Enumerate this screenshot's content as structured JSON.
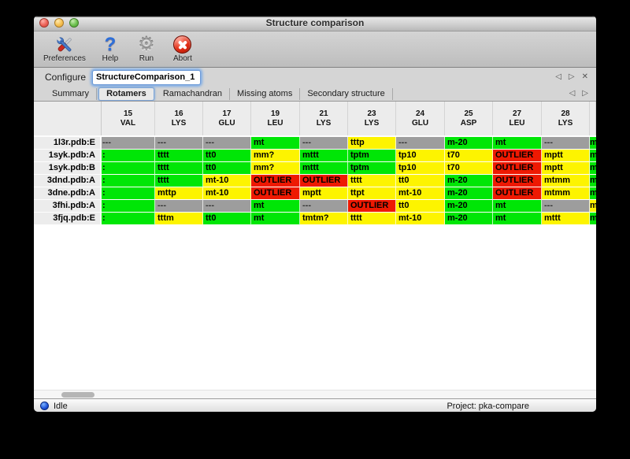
{
  "window": {
    "title": "Structure comparison"
  },
  "toolbar": {
    "items": [
      {
        "label": "Preferences",
        "icon": "tools-icon"
      },
      {
        "label": "Help",
        "icon": "help-icon",
        "glyph": "?"
      },
      {
        "label": "Run",
        "icon": "gear-icon",
        "glyph": "⚙"
      },
      {
        "label": "Abort",
        "icon": "abort-icon"
      }
    ]
  },
  "configure": {
    "label": "Configure",
    "value": "StructureComparison_1",
    "controls": {
      "left": "◁",
      "right": "▷",
      "close": "✕"
    }
  },
  "tabs": {
    "items": [
      "Summary",
      "Rotamers",
      "Ramachandran",
      "Missing atoms",
      "Secondary structure"
    ],
    "selected": "Rotamers",
    "controls": {
      "left": "◁",
      "right": "▷"
    }
  },
  "colors": {
    "green": "#00e606",
    "yellow": "#fdf400",
    "red": "#ee1902",
    "gray": "#9d9d9d"
  },
  "table": {
    "columns": [
      {
        "num": "15",
        "res": "VAL"
      },
      {
        "num": "16",
        "res": "LYS"
      },
      {
        "num": "17",
        "res": "GLU"
      },
      {
        "num": "19",
        "res": "LEU"
      },
      {
        "num": "21",
        "res": "LYS"
      },
      {
        "num": "23",
        "res": "LYS"
      },
      {
        "num": "24",
        "res": "GLU"
      },
      {
        "num": "25",
        "res": "ASP"
      },
      {
        "num": "27",
        "res": "LEU"
      },
      {
        "num": "28",
        "res": "LYS"
      }
    ],
    "rows": [
      {
        "label": "1l3r.pdb:E",
        "cells": [
          {
            "t": "---",
            "c": "gray"
          },
          {
            "t": "---",
            "c": "gray"
          },
          {
            "t": "---",
            "c": "gray"
          },
          {
            "t": "mt",
            "c": "green"
          },
          {
            "t": "---",
            "c": "gray"
          },
          {
            "t": "tttp",
            "c": "yellow"
          },
          {
            "t": "---",
            "c": "gray"
          },
          {
            "t": "m-20",
            "c": "green"
          },
          {
            "t": "mt",
            "c": "green"
          },
          {
            "t": "---",
            "c": "gray"
          }
        ],
        "clipped": {
          "t": "m",
          "c": "green"
        }
      },
      {
        "label": "1syk.pdb:A",
        "cells": [
          {
            "t": ":",
            "c": "green"
          },
          {
            "t": "tttt",
            "c": "green"
          },
          {
            "t": "tt0",
            "c": "green"
          },
          {
            "t": "mm?",
            "c": "yellow"
          },
          {
            "t": "mttt",
            "c": "green"
          },
          {
            "t": "tptm",
            "c": "green"
          },
          {
            "t": "tp10",
            "c": "yellow"
          },
          {
            "t": "t70",
            "c": "yellow"
          },
          {
            "t": "OUTLIER",
            "c": "red"
          },
          {
            "t": "mptt",
            "c": "yellow"
          }
        ],
        "clipped": {
          "t": "m",
          "c": "green"
        }
      },
      {
        "label": "1syk.pdb:B",
        "cells": [
          {
            "t": ":",
            "c": "green"
          },
          {
            "t": "tttt",
            "c": "green"
          },
          {
            "t": "tt0",
            "c": "green"
          },
          {
            "t": "mm?",
            "c": "yellow"
          },
          {
            "t": "mttt",
            "c": "green"
          },
          {
            "t": "tptm",
            "c": "green"
          },
          {
            "t": "tp10",
            "c": "yellow"
          },
          {
            "t": "t70",
            "c": "yellow"
          },
          {
            "t": "OUTLIER",
            "c": "red"
          },
          {
            "t": "mptt",
            "c": "yellow"
          }
        ],
        "clipped": {
          "t": "m",
          "c": "green"
        }
      },
      {
        "label": "3dnd.pdb:A",
        "cells": [
          {
            "t": ":",
            "c": "green"
          },
          {
            "t": "tttt",
            "c": "green"
          },
          {
            "t": "mt-10",
            "c": "yellow"
          },
          {
            "t": "OUTLIER",
            "c": "red"
          },
          {
            "t": "OUTLIER",
            "c": "red"
          },
          {
            "t": "tttt",
            "c": "yellow"
          },
          {
            "t": "tt0",
            "c": "yellow"
          },
          {
            "t": "m-20",
            "c": "green"
          },
          {
            "t": "OUTLIER",
            "c": "red"
          },
          {
            "t": "mtmm",
            "c": "yellow"
          }
        ],
        "clipped": {
          "t": "m",
          "c": "green"
        }
      },
      {
        "label": "3dne.pdb:A",
        "cells": [
          {
            "t": ":",
            "c": "green"
          },
          {
            "t": "mttp",
            "c": "yellow"
          },
          {
            "t": "mt-10",
            "c": "yellow"
          },
          {
            "t": "OUTLIER",
            "c": "red"
          },
          {
            "t": "mptt",
            "c": "yellow"
          },
          {
            "t": "ttpt",
            "c": "yellow"
          },
          {
            "t": "mt-10",
            "c": "yellow"
          },
          {
            "t": "m-20",
            "c": "green"
          },
          {
            "t": "OUTLIER",
            "c": "red"
          },
          {
            "t": "mtmm",
            "c": "yellow"
          }
        ],
        "clipped": {
          "t": "m",
          "c": "green"
        }
      },
      {
        "label": "3fhi.pdb:A",
        "cells": [
          {
            "t": ":",
            "c": "green"
          },
          {
            "t": "---",
            "c": "gray"
          },
          {
            "t": "---",
            "c": "gray"
          },
          {
            "t": "mt",
            "c": "green"
          },
          {
            "t": "---",
            "c": "gray"
          },
          {
            "t": "OUTLIER",
            "c": "red"
          },
          {
            "t": "tt0",
            "c": "yellow"
          },
          {
            "t": "m-20",
            "c": "green"
          },
          {
            "t": "mt",
            "c": "green"
          },
          {
            "t": "---",
            "c": "gray"
          }
        ],
        "clipped": {
          "t": "m",
          "c": "yellow"
        }
      },
      {
        "label": "3fjq.pdb:E",
        "cells": [
          {
            "t": ":",
            "c": "green"
          },
          {
            "t": "tttm",
            "c": "yellow"
          },
          {
            "t": "tt0",
            "c": "green"
          },
          {
            "t": "mt",
            "c": "green"
          },
          {
            "t": "tmtm?",
            "c": "yellow"
          },
          {
            "t": "tttt",
            "c": "yellow"
          },
          {
            "t": "mt-10",
            "c": "yellow"
          },
          {
            "t": "m-20",
            "c": "green"
          },
          {
            "t": "mt",
            "c": "green"
          },
          {
            "t": "mttt",
            "c": "yellow"
          }
        ],
        "clipped": {
          "t": "m",
          "c": "green"
        }
      }
    ]
  },
  "statusbar": {
    "status": "Idle",
    "project": "Project: pka-compare"
  }
}
